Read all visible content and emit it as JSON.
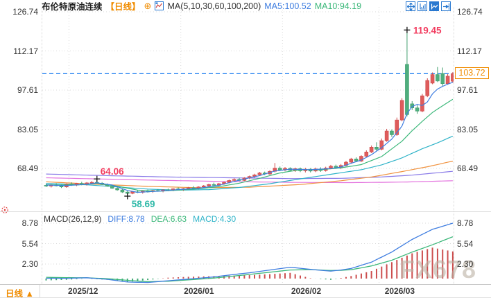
{
  "header": {
    "title": "布伦特原油连续",
    "period_tag": "【日线】",
    "add_icon": "⊕",
    "ma_formula": "MA(5,10,30,60,100,200)",
    "ma5": "MA5:100.52",
    "ma10": "MA10:94.19"
  },
  "toolbar": {
    "icons": [
      {
        "name": "crosshair-pan"
      },
      {
        "name": "axis-range"
      },
      {
        "name": "chart-style",
        "active": true
      },
      {
        "name": "collapse-panel"
      }
    ]
  },
  "price_axis": {
    "ticks": [
      "126.74",
      "112.17",
      "97.61",
      "83.05",
      "68.49"
    ]
  },
  "price_box": {
    "text": "103.72"
  },
  "macd_panel": {
    "name": "MACD(26,12,9)",
    "diff_label": "DIFF:8.78",
    "dea_label": "DEA:6.63",
    "macd_label": "MACD:4.30",
    "ticks": [
      "8.78",
      "5.54",
      "2.30"
    ]
  },
  "bottom_bar": {
    "period_label": "日线",
    "dropdown_icon": "▲"
  },
  "watermark": "FX678",
  "colors": {
    "up": "#de5c5c",
    "up_stroke": "#d04a4a",
    "down": "#4fae7e",
    "down_stroke": "#3f9e6c",
    "ma5": "#3e7de0",
    "ma10": "#3cb87a",
    "ma30": "#2eb3c8",
    "ma60": "#f0923f",
    "ma100": "#8a7be8",
    "ma200": "#e372de",
    "grid": "#d9d9d9",
    "current_price_line": "#1f7ff0",
    "macd_pos": "#cc4e4e",
    "macd_neg": "#3fa873",
    "annotation_red": "#f23c5f",
    "annotation_teal": "#2fb9a8",
    "accent_orange": "#f08c00",
    "toolbar_blue": "#2878d0"
  },
  "chart_data": {
    "type": "candlestick",
    "symbol": "布伦特原油连续",
    "period": "日线",
    "current_price": 103.72,
    "y_ticks": [
      126.74,
      112.17,
      97.61,
      83.05,
      68.49
    ],
    "candles": [
      [
        62.2,
        62.8,
        61.6,
        61.9
      ],
      [
        61.9,
        62.6,
        61.4,
        62.4
      ],
      [
        62.4,
        63.0,
        61.8,
        62.0
      ],
      [
        62.0,
        62.5,
        61.2,
        61.6
      ],
      [
        61.6,
        62.9,
        61.3,
        62.7
      ],
      [
        62.7,
        63.3,
        62.0,
        62.3
      ],
      [
        62.3,
        63.1,
        61.9,
        62.9
      ],
      [
        62.9,
        63.5,
        62.2,
        62.6
      ],
      [
        62.6,
        63.4,
        62.1,
        63.1
      ],
      [
        63.1,
        63.8,
        62.6,
        63.3
      ],
      [
        63.3,
        64.06,
        62.8,
        63.0
      ],
      [
        63.0,
        63.4,
        62.3,
        62.5
      ],
      [
        62.5,
        62.9,
        61.7,
        61.9
      ],
      [
        61.9,
        62.3,
        60.9,
        61.1
      ],
      [
        61.1,
        61.6,
        60.2,
        60.5
      ],
      [
        60.5,
        60.9,
        59.4,
        59.7
      ],
      [
        59.7,
        60.1,
        58.69,
        59.2
      ],
      [
        59.2,
        60.0,
        58.9,
        59.8
      ],
      [
        59.8,
        60.4,
        59.3,
        59.6
      ],
      [
        59.6,
        60.2,
        59.1,
        60.0
      ],
      [
        60.0,
        60.6,
        59.5,
        59.9
      ],
      [
        59.9,
        60.5,
        59.4,
        60.3
      ],
      [
        60.3,
        60.8,
        59.8,
        60.1
      ],
      [
        60.1,
        60.7,
        59.6,
        60.5
      ],
      [
        60.5,
        61.0,
        60.0,
        60.4
      ],
      [
        60.4,
        61.1,
        60.0,
        60.9
      ],
      [
        60.9,
        61.4,
        60.3,
        60.6
      ],
      [
        60.6,
        61.2,
        60.1,
        61.0
      ],
      [
        61.0,
        61.6,
        60.5,
        61.3
      ],
      [
        61.3,
        61.9,
        60.8,
        61.1
      ],
      [
        61.1,
        61.8,
        60.7,
        61.6
      ],
      [
        61.6,
        62.3,
        61.2,
        62.0
      ],
      [
        62.0,
        62.8,
        61.5,
        62.5
      ],
      [
        62.5,
        63.2,
        62.0,
        62.2
      ],
      [
        62.2,
        63.1,
        61.9,
        62.8
      ],
      [
        62.8,
        63.6,
        62.4,
        63.3
      ],
      [
        63.3,
        64.3,
        62.9,
        64.0
      ],
      [
        64.0,
        64.8,
        63.5,
        64.4
      ],
      [
        64.4,
        65.0,
        63.7,
        64.0
      ],
      [
        64.0,
        65.2,
        63.8,
        64.9
      ],
      [
        64.9,
        65.8,
        64.5,
        65.5
      ],
      [
        65.5,
        66.5,
        65.0,
        66.1
      ],
      [
        66.1,
        67.2,
        65.7,
        66.8
      ],
      [
        66.8,
        67.3,
        66.0,
        66.4
      ],
      [
        66.4,
        67.8,
        66.1,
        67.4
      ],
      [
        67.4,
        70.5,
        67.0,
        68.6
      ],
      [
        68.6,
        69.2,
        67.5,
        67.9
      ],
      [
        67.9,
        69.0,
        67.4,
        68.5
      ],
      [
        68.5,
        68.9,
        67.3,
        67.8
      ],
      [
        67.8,
        68.8,
        67.2,
        68.4
      ],
      [
        68.4,
        68.8,
        67.1,
        67.6
      ],
      [
        67.6,
        68.7,
        67.0,
        68.2
      ],
      [
        68.2,
        68.6,
        67.0,
        67.5
      ],
      [
        67.5,
        68.8,
        67.1,
        68.3
      ],
      [
        68.3,
        68.9,
        67.2,
        67.7
      ],
      [
        67.7,
        69.1,
        67.3,
        68.6
      ],
      [
        68.6,
        69.8,
        68.2,
        69.3
      ],
      [
        69.3,
        69.9,
        68.3,
        68.7
      ],
      [
        68.7,
        70.1,
        68.2,
        69.6
      ],
      [
        69.6,
        71.3,
        69.2,
        70.8
      ],
      [
        70.8,
        72.4,
        70.2,
        72.0
      ],
      [
        72.0,
        72.6,
        70.8,
        71.2
      ],
      [
        71.2,
        73.4,
        70.9,
        73.0
      ],
      [
        73.0,
        75.2,
        72.6,
        74.6
      ],
      [
        74.6,
        77.0,
        74.2,
        76.4
      ],
      [
        76.4,
        78.2,
        75.0,
        75.6
      ],
      [
        75.6,
        79.6,
        75.2,
        78.8
      ],
      [
        78.8,
        83.2,
        78.4,
        82.4
      ],
      [
        82.4,
        83.0,
        80.2,
        81.0
      ],
      [
        81.0,
        87.4,
        80.6,
        86.5
      ],
      [
        86.5,
        94.6,
        86.0,
        93.8
      ],
      [
        107.2,
        119.45,
        87.8,
        88.5
      ],
      [
        92.5,
        93.5,
        90.2,
        91.0
      ],
      [
        91.0,
        92.0,
        88.8,
        89.8
      ],
      [
        89.8,
        96.2,
        89.4,
        95.5
      ],
      [
        95.5,
        102.0,
        95.0,
        101.2
      ],
      [
        100.2,
        104.2,
        99.8,
        103.4
      ],
      [
        103.4,
        106.2,
        100.6,
        101.0
      ],
      [
        103.8,
        106.0,
        99.2,
        100.0
      ],
      [
        100.0,
        103.6,
        99.6,
        102.8
      ],
      [
        100.9,
        104.3,
        100.3,
        103.72
      ]
    ],
    "ma_series": [
      {
        "name": "MA200",
        "color": "ma200",
        "points": [
          [
            0,
            65.0
          ],
          [
            12,
            64.5
          ],
          [
            24,
            64.0
          ],
          [
            36,
            63.6
          ],
          [
            48,
            63.3
          ],
          [
            60,
            63.2
          ],
          [
            70,
            63.4
          ],
          [
            80,
            63.9
          ]
        ]
      },
      {
        "name": "MA100",
        "color": "ma100",
        "points": [
          [
            0,
            66.4
          ],
          [
            12,
            65.8
          ],
          [
            24,
            65.3
          ],
          [
            36,
            65.0
          ],
          [
            48,
            64.7
          ],
          [
            58,
            64.8
          ],
          [
            66,
            65.3
          ],
          [
            72,
            66.0
          ],
          [
            80,
            67.4
          ]
        ]
      },
      {
        "name": "MA60",
        "color": "ma60",
        "points": [
          [
            0,
            63.5
          ],
          [
            10,
            62.6
          ],
          [
            20,
            61.8
          ],
          [
            30,
            61.3
          ],
          [
            40,
            61.5
          ],
          [
            50,
            62.5
          ],
          [
            58,
            63.9
          ],
          [
            64,
            65.3
          ],
          [
            70,
            67.3
          ],
          [
            75,
            69.1
          ],
          [
            80,
            71.2
          ]
        ]
      },
      {
        "name": "MA30",
        "color": "ma30",
        "points": [
          [
            0,
            62.9
          ],
          [
            8,
            62.4
          ],
          [
            14,
            61.6
          ],
          [
            20,
            60.8
          ],
          [
            26,
            60.4
          ],
          [
            32,
            60.6
          ],
          [
            38,
            61.4
          ],
          [
            44,
            62.8
          ],
          [
            50,
            64.6
          ],
          [
            56,
            66.3
          ],
          [
            62,
            68.0
          ],
          [
            66,
            69.8
          ],
          [
            70,
            72.4
          ],
          [
            74,
            75.8
          ],
          [
            77,
            78.0
          ],
          [
            80,
            80.5
          ]
        ]
      },
      {
        "name": "MA10",
        "color": "ma10",
        "points": [
          [
            0,
            62.4
          ],
          [
            6,
            62.3
          ],
          [
            10,
            62.9
          ],
          [
            14,
            61.9
          ],
          [
            18,
            60.4
          ],
          [
            22,
            60.0
          ],
          [
            26,
            60.4
          ],
          [
            30,
            60.9
          ],
          [
            34,
            61.7
          ],
          [
            38,
            63.0
          ],
          [
            42,
            64.8
          ],
          [
            46,
            66.8
          ],
          [
            50,
            68.0
          ],
          [
            54,
            68.0
          ],
          [
            58,
            68.7
          ],
          [
            62,
            69.9
          ],
          [
            66,
            72.9
          ],
          [
            70,
            78.6
          ],
          [
            72,
            82.5
          ],
          [
            74,
            86.0
          ],
          [
            76,
            89.3
          ],
          [
            78,
            91.8
          ],
          [
            80,
            94.19
          ]
        ]
      },
      {
        "name": "MA5",
        "color": "ma5",
        "points": [
          [
            0,
            62.3
          ],
          [
            4,
            62.1
          ],
          [
            8,
            62.6
          ],
          [
            10,
            63.1
          ],
          [
            13,
            62.3
          ],
          [
            16,
            60.3
          ],
          [
            18,
            59.6
          ],
          [
            22,
            60.0
          ],
          [
            26,
            60.6
          ],
          [
            30,
            61.1
          ],
          [
            34,
            62.2
          ],
          [
            38,
            64.1
          ],
          [
            42,
            65.8
          ],
          [
            45,
            67.5
          ],
          [
            48,
            68.2
          ],
          [
            52,
            68.0
          ],
          [
            56,
            68.4
          ],
          [
            58,
            69.0
          ],
          [
            60,
            70.4
          ],
          [
            62,
            71.6
          ],
          [
            64,
            73.6
          ],
          [
            66,
            76.2
          ],
          [
            68,
            79.4
          ],
          [
            70,
            84.2
          ],
          [
            71,
            88.9
          ],
          [
            72,
            91.5
          ],
          [
            73,
            92.3
          ],
          [
            74,
            91.9
          ],
          [
            75,
            93.2
          ],
          [
            76,
            96.2
          ],
          [
            77,
            98.0
          ],
          [
            78,
            99.0
          ],
          [
            79,
            99.8
          ],
          [
            80,
            100.52
          ]
        ]
      }
    ],
    "months": [
      {
        "label": "2025/12",
        "start_index": 5,
        "label_index": 7.4
      },
      {
        "label": "2026/01",
        "start_index": 27,
        "label_index": 30.2
      },
      {
        "label": "2026/02",
        "start_index": 47,
        "label_index": 51.3
      },
      {
        "label": "2026/03",
        "start_index": 66,
        "label_index": 69.7
      }
    ],
    "markers": [
      {
        "index": 10,
        "price": 64.06,
        "label": "64.06",
        "type": "high",
        "color": "annotation_red",
        "placement": "above-right"
      },
      {
        "index": 16,
        "price": 58.69,
        "label": "58.69",
        "type": "low",
        "color": "annotation_teal",
        "placement": "below-right"
      },
      {
        "index": 71,
        "price": 119.45,
        "label": "119.45",
        "type": "high",
        "color": "annotation_red",
        "placement": "right"
      }
    ],
    "macd": {
      "params": [
        26,
        12,
        9
      ],
      "diff_value": 8.78,
      "dea_value": 6.63,
      "macd_value": 4.3,
      "macd_ticks": [
        8.78,
        5.54,
        2.3
      ],
      "histogram_rule": "2*(diff-dea)",
      "diff": [
        [
          0,
          0.05
        ],
        [
          4,
          0.04
        ],
        [
          8,
          0.12
        ],
        [
          12,
          -0.12
        ],
        [
          16,
          -0.55
        ],
        [
          20,
          -0.62
        ],
        [
          24,
          -0.35
        ],
        [
          28,
          -0.08
        ],
        [
          32,
          0.18
        ],
        [
          36,
          0.55
        ],
        [
          40,
          0.92
        ],
        [
          44,
          1.35
        ],
        [
          48,
          1.8
        ],
        [
          52,
          1.45
        ],
        [
          56,
          1.18
        ],
        [
          58,
          1.35
        ],
        [
          60,
          1.6
        ],
        [
          64,
          2.6
        ],
        [
          68,
          4.2
        ],
        [
          72,
          6.2
        ],
        [
          76,
          7.8
        ],
        [
          80,
          8.78
        ]
      ],
      "dea": [
        [
          0,
          0.2
        ],
        [
          4,
          0.14
        ],
        [
          8,
          0.12
        ],
        [
          12,
          -0.02
        ],
        [
          16,
          -0.28
        ],
        [
          20,
          -0.5
        ],
        [
          24,
          -0.42
        ],
        [
          28,
          -0.22
        ],
        [
          32,
          0.0
        ],
        [
          36,
          0.32
        ],
        [
          40,
          0.65
        ],
        [
          44,
          1.0
        ],
        [
          48,
          1.35
        ],
        [
          52,
          1.42
        ],
        [
          56,
          1.28
        ],
        [
          58,
          1.3
        ],
        [
          60,
          1.4
        ],
        [
          64,
          2.0
        ],
        [
          68,
          2.9
        ],
        [
          72,
          4.2
        ],
        [
          76,
          5.35
        ],
        [
          80,
          6.63
        ]
      ]
    }
  }
}
